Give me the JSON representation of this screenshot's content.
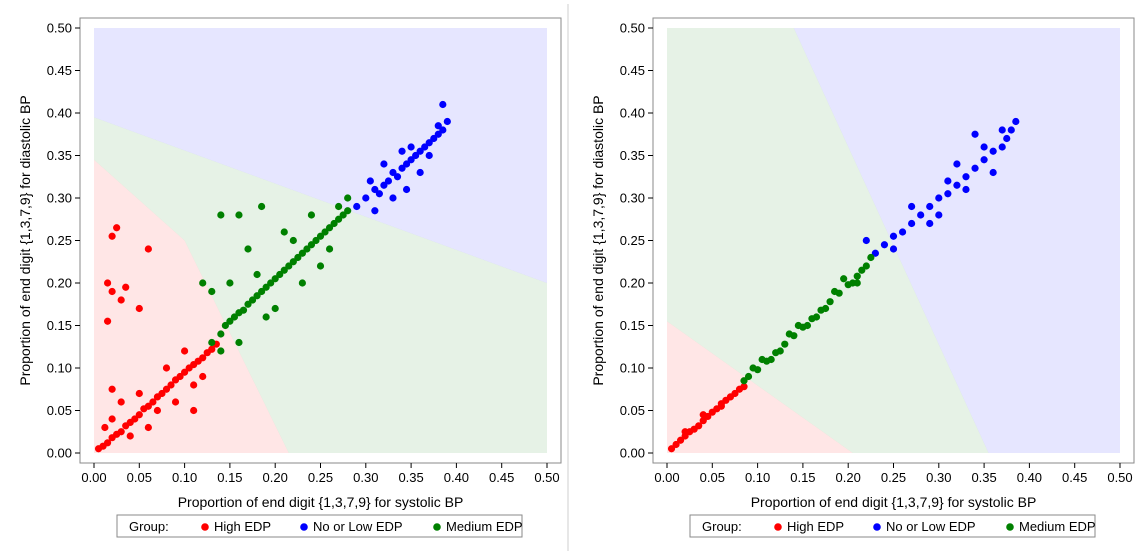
{
  "legend": {
    "title": "Group:",
    "items": [
      {
        "label": "High EDP",
        "color": "#ff0000"
      },
      {
        "label": "No or Low EDP",
        "color": "#0000ff"
      },
      {
        "label": "Medium EDP",
        "color": "#008000"
      }
    ]
  },
  "chart_data": [
    {
      "type": "scatter",
      "title": "",
      "xlabel": "Proportion of end digit {1,3,7,9} for systolic BP",
      "ylabel": "Proportion of end digit {1,3,7,9} for diastolic BP",
      "xlim": [
        0.0,
        0.5
      ],
      "ylim": [
        0.0,
        0.5
      ],
      "x_ticks": [
        "0.00",
        "0.05",
        "0.10",
        "0.15",
        "0.20",
        "0.25",
        "0.30",
        "0.35",
        "0.40",
        "0.45",
        "0.50"
      ],
      "y_ticks": [
        "0.00",
        "0.05",
        "0.10",
        "0.15",
        "0.20",
        "0.25",
        "0.30",
        "0.35",
        "0.40",
        "0.45",
        "0.50"
      ],
      "grid": false,
      "background": "classification regions shaded by group (grid-pattern fill)",
      "regions": [
        {
          "group": "High EDP",
          "color": "#ff0000",
          "polygon": [
            [
              0,
              0
            ],
            [
              0.215,
              0
            ],
            [
              0.1,
              0.25
            ],
            [
              0,
              0.345
            ]
          ]
        },
        {
          "group": "Medium EDP",
          "color": "#008000",
          "polygon": [
            [
              0.215,
              0
            ],
            [
              0.5,
              0
            ],
            [
              0.5,
              0.2
            ],
            [
              0,
              0.395
            ],
            [
              0,
              0.345
            ],
            [
              0.1,
              0.25
            ]
          ]
        },
        {
          "group": "No or Low EDP",
          "color": "#0000ff",
          "polygon": [
            [
              0,
              0.395
            ],
            [
              0.5,
              0.2
            ],
            [
              0.5,
              0.5
            ],
            [
              0,
              0.5
            ]
          ]
        }
      ],
      "series": [
        {
          "name": "High EDP",
          "color": "#ff0000",
          "points": [
            [
              0.005,
              0.005
            ],
            [
              0.01,
              0.008
            ],
            [
              0.015,
              0.012
            ],
            [
              0.02,
              0.018
            ],
            [
              0.025,
              0.022
            ],
            [
              0.03,
              0.025
            ],
            [
              0.035,
              0.032
            ],
            [
              0.04,
              0.036
            ],
            [
              0.045,
              0.04
            ],
            [
              0.05,
              0.045
            ],
            [
              0.055,
              0.052
            ],
            [
              0.06,
              0.055
            ],
            [
              0.065,
              0.06
            ],
            [
              0.07,
              0.066
            ],
            [
              0.075,
              0.07
            ],
            [
              0.08,
              0.075
            ],
            [
              0.085,
              0.08
            ],
            [
              0.09,
              0.086
            ],
            [
              0.095,
              0.09
            ],
            [
              0.1,
              0.095
            ],
            [
              0.105,
              0.1
            ],
            [
              0.11,
              0.104
            ],
            [
              0.115,
              0.108
            ],
            [
              0.12,
              0.112
            ],
            [
              0.125,
              0.118
            ],
            [
              0.13,
              0.122
            ],
            [
              0.135,
              0.128
            ],
            [
              0.012,
              0.03
            ],
            [
              0.03,
              0.06
            ],
            [
              0.02,
              0.04
            ],
            [
              0.04,
              0.02
            ],
            [
              0.06,
              0.03
            ],
            [
              0.09,
              0.06
            ],
            [
              0.11,
              0.08
            ],
            [
              0.08,
              0.1
            ],
            [
              0.07,
              0.05
            ],
            [
              0.05,
              0.07
            ],
            [
              0.1,
              0.12
            ],
            [
              0.12,
              0.09
            ],
            [
              0.02,
              0.255
            ],
            [
              0.025,
              0.265
            ],
            [
              0.06,
              0.24
            ],
            [
              0.015,
              0.2
            ],
            [
              0.02,
              0.19
            ],
            [
              0.035,
              0.195
            ],
            [
              0.03,
              0.18
            ],
            [
              0.015,
              0.155
            ],
            [
              0.05,
              0.17
            ],
            [
              0.02,
              0.075
            ],
            [
              0.11,
              0.05
            ]
          ]
        },
        {
          "name": "No or Low EDP",
          "color": "#0000ff",
          "points": [
            [
              0.3,
              0.3
            ],
            [
              0.31,
              0.31
            ],
            [
              0.315,
              0.305
            ],
            [
              0.32,
              0.315
            ],
            [
              0.325,
              0.32
            ],
            [
              0.33,
              0.33
            ],
            [
              0.335,
              0.325
            ],
            [
              0.34,
              0.335
            ],
            [
              0.345,
              0.34
            ],
            [
              0.35,
              0.345
            ],
            [
              0.355,
              0.35
            ],
            [
              0.36,
              0.355
            ],
            [
              0.365,
              0.36
            ],
            [
              0.37,
              0.365
            ],
            [
              0.375,
              0.37
            ],
            [
              0.38,
              0.375
            ],
            [
              0.385,
              0.38
            ],
            [
              0.39,
              0.39
            ],
            [
              0.385,
              0.41
            ],
            [
              0.31,
              0.285
            ],
            [
              0.305,
              0.32
            ],
            [
              0.33,
              0.3
            ],
            [
              0.345,
              0.31
            ],
            [
              0.36,
              0.33
            ],
            [
              0.37,
              0.35
            ],
            [
              0.35,
              0.36
            ],
            [
              0.34,
              0.355
            ],
            [
              0.38,
              0.385
            ],
            [
              0.29,
              0.29
            ],
            [
              0.32,
              0.34
            ]
          ]
        },
        {
          "name": "Medium EDP",
          "color": "#008000",
          "points": [
            [
              0.13,
              0.13
            ],
            [
              0.14,
              0.14
            ],
            [
              0.145,
              0.15
            ],
            [
              0.15,
              0.155
            ],
            [
              0.155,
              0.16
            ],
            [
              0.16,
              0.165
            ],
            [
              0.165,
              0.168
            ],
            [
              0.17,
              0.175
            ],
            [
              0.175,
              0.18
            ],
            [
              0.18,
              0.185
            ],
            [
              0.185,
              0.19
            ],
            [
              0.19,
              0.195
            ],
            [
              0.195,
              0.2
            ],
            [
              0.2,
              0.205
            ],
            [
              0.205,
              0.21
            ],
            [
              0.21,
              0.215
            ],
            [
              0.215,
              0.22
            ],
            [
              0.22,
              0.225
            ],
            [
              0.225,
              0.23
            ],
            [
              0.23,
              0.235
            ],
            [
              0.235,
              0.24
            ],
            [
              0.24,
              0.245
            ],
            [
              0.245,
              0.25
            ],
            [
              0.25,
              0.255
            ],
            [
              0.255,
              0.26
            ],
            [
              0.26,
              0.265
            ],
            [
              0.265,
              0.27
            ],
            [
              0.27,
              0.275
            ],
            [
              0.275,
              0.28
            ],
            [
              0.28,
              0.285
            ],
            [
              0.14,
              0.28
            ],
            [
              0.16,
              0.28
            ],
            [
              0.185,
              0.29
            ],
            [
              0.24,
              0.28
            ],
            [
              0.27,
              0.29
            ],
            [
              0.17,
              0.24
            ],
            [
              0.21,
              0.26
            ],
            [
              0.12,
              0.2
            ],
            [
              0.13,
              0.19
            ],
            [
              0.15,
              0.2
            ],
            [
              0.2,
              0.17
            ],
            [
              0.23,
              0.2
            ],
            [
              0.25,
              0.22
            ],
            [
              0.19,
              0.16
            ],
            [
              0.16,
              0.13
            ],
            [
              0.22,
              0.25
            ],
            [
              0.28,
              0.3
            ],
            [
              0.26,
              0.24
            ],
            [
              0.18,
              0.21
            ],
            [
              0.14,
              0.12
            ]
          ]
        }
      ]
    },
    {
      "type": "scatter",
      "title": "",
      "xlabel": "Proportion of end digit {1,3,7,9} for systolic BP",
      "ylabel": "Proportion of end digit {1,3,7,9} for diastolic BP",
      "xlim": [
        0.0,
        0.5
      ],
      "ylim": [
        0.0,
        0.5
      ],
      "x_ticks": [
        "0.00",
        "0.05",
        "0.10",
        "0.15",
        "0.20",
        "0.25",
        "0.30",
        "0.35",
        "0.40",
        "0.45",
        "0.50"
      ],
      "y_ticks": [
        "0.00",
        "0.05",
        "0.10",
        "0.15",
        "0.20",
        "0.25",
        "0.30",
        "0.35",
        "0.40",
        "0.45",
        "0.50"
      ],
      "grid": false,
      "background": "classification regions shaded by group (grid-pattern fill)",
      "regions": [
        {
          "group": "High EDP",
          "color": "#ff0000",
          "polygon": [
            [
              0,
              0
            ],
            [
              0.205,
              0
            ],
            [
              0,
              0.155
            ]
          ]
        },
        {
          "group": "Medium EDP",
          "color": "#008000",
          "polygon": [
            [
              0.205,
              0
            ],
            [
              0.355,
              0
            ],
            [
              0.14,
              0.5
            ],
            [
              0,
              0.5
            ],
            [
              0,
              0.155
            ]
          ]
        },
        {
          "group": "No or Low EDP",
          "color": "#0000ff",
          "polygon": [
            [
              0.355,
              0
            ],
            [
              0.5,
              0
            ],
            [
              0.5,
              0.5
            ],
            [
              0.14,
              0.5
            ]
          ]
        }
      ],
      "series": [
        {
          "name": "High EDP",
          "color": "#ff0000",
          "points": [
            [
              0.005,
              0.005
            ],
            [
              0.01,
              0.01
            ],
            [
              0.015,
              0.015
            ],
            [
              0.02,
              0.02
            ],
            [
              0.025,
              0.025
            ],
            [
              0.03,
              0.028
            ],
            [
              0.035,
              0.032
            ],
            [
              0.04,
              0.038
            ],
            [
              0.045,
              0.043
            ],
            [
              0.05,
              0.048
            ],
            [
              0.055,
              0.052
            ],
            [
              0.06,
              0.058
            ],
            [
              0.065,
              0.062
            ],
            [
              0.07,
              0.066
            ],
            [
              0.075,
              0.07
            ],
            [
              0.08,
              0.075
            ],
            [
              0.085,
              0.078
            ],
            [
              0.02,
              0.025
            ],
            [
              0.04,
              0.045
            ],
            [
              0.06,
              0.055
            ]
          ]
        },
        {
          "name": "No or Low EDP",
          "color": "#0000ff",
          "points": [
            [
              0.22,
              0.25
            ],
            [
              0.23,
              0.235
            ],
            [
              0.24,
              0.245
            ],
            [
              0.25,
              0.255
            ],
            [
              0.26,
              0.26
            ],
            [
              0.27,
              0.27
            ],
            [
              0.28,
              0.28
            ],
            [
              0.29,
              0.29
            ],
            [
              0.3,
              0.3
            ],
            [
              0.31,
              0.305
            ],
            [
              0.32,
              0.315
            ],
            [
              0.33,
              0.325
            ],
            [
              0.34,
              0.335
            ],
            [
              0.35,
              0.345
            ],
            [
              0.36,
              0.355
            ],
            [
              0.37,
              0.36
            ],
            [
              0.375,
              0.37
            ],
            [
              0.38,
              0.38
            ],
            [
              0.385,
              0.39
            ],
            [
              0.34,
              0.375
            ],
            [
              0.3,
              0.28
            ],
            [
              0.32,
              0.34
            ],
            [
              0.36,
              0.33
            ],
            [
              0.25,
              0.24
            ],
            [
              0.27,
              0.29
            ],
            [
              0.31,
              0.32
            ],
            [
              0.35,
              0.36
            ],
            [
              0.29,
              0.27
            ],
            [
              0.33,
              0.31
            ],
            [
              0.37,
              0.38
            ]
          ]
        },
        {
          "name": "Medium EDP",
          "color": "#008000",
          "points": [
            [
              0.085,
              0.085
            ],
            [
              0.09,
              0.09
            ],
            [
              0.1,
              0.098
            ],
            [
              0.11,
              0.108
            ],
            [
              0.12,
              0.118
            ],
            [
              0.13,
              0.128
            ],
            [
              0.14,
              0.138
            ],
            [
              0.15,
              0.148
            ],
            [
              0.16,
              0.158
            ],
            [
              0.17,
              0.168
            ],
            [
              0.18,
              0.178
            ],
            [
              0.19,
              0.188
            ],
            [
              0.2,
              0.198
            ],
            [
              0.21,
              0.208
            ],
            [
              0.215,
              0.215
            ],
            [
              0.22,
              0.22
            ],
            [
              0.105,
              0.11
            ],
            [
              0.125,
              0.12
            ],
            [
              0.145,
              0.15
            ],
            [
              0.165,
              0.16
            ],
            [
              0.185,
              0.19
            ],
            [
              0.205,
              0.2
            ],
            [
              0.095,
              0.1
            ],
            [
              0.135,
              0.14
            ],
            [
              0.175,
              0.17
            ],
            [
              0.195,
              0.205
            ],
            [
              0.155,
              0.15
            ],
            [
              0.115,
              0.11
            ],
            [
              0.225,
              0.23
            ],
            [
              0.21,
              0.2
            ]
          ]
        }
      ]
    }
  ]
}
